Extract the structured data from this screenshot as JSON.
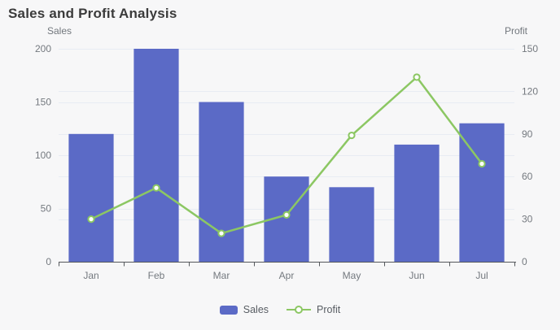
{
  "title": "Sales and Profit Analysis",
  "colors": {
    "background": "#f7f7f8",
    "bar": "#5b6ac6",
    "line": "#8cc763",
    "marker_fill": "#ffffff",
    "grid": "#e8ecf3",
    "axis_line": "#55585c",
    "title_text": "#3b3b3b",
    "tick_text": "#74797f",
    "legend_text": "#585d63"
  },
  "chart_data": {
    "type": "combo-bar-line",
    "title": "Sales and Profit Analysis",
    "categories": [
      "Jan",
      "Feb",
      "Mar",
      "Apr",
      "May",
      "Jun",
      "Jul"
    ],
    "series": [
      {
        "name": "Sales",
        "type": "bar",
        "axis": "left",
        "values": [
          120,
          200,
          150,
          80,
          70,
          110,
          130
        ]
      },
      {
        "name": "Profit",
        "type": "line",
        "axis": "right",
        "values": [
          30,
          52,
          20,
          33,
          89,
          130,
          69
        ]
      }
    ],
    "left_axis": {
      "label": "Sales",
      "min": 0,
      "max": 200,
      "ticks": [
        0,
        50,
        100,
        150,
        200
      ]
    },
    "right_axis": {
      "label": "Profit",
      "min": 0,
      "max": 150,
      "ticks": [
        0,
        30,
        60,
        90,
        120,
        150
      ]
    },
    "grid": true,
    "legend_position": "bottom"
  },
  "legend": {
    "items": [
      {
        "label": "Sales",
        "type": "bar"
      },
      {
        "label": "Profit",
        "type": "line"
      }
    ]
  }
}
